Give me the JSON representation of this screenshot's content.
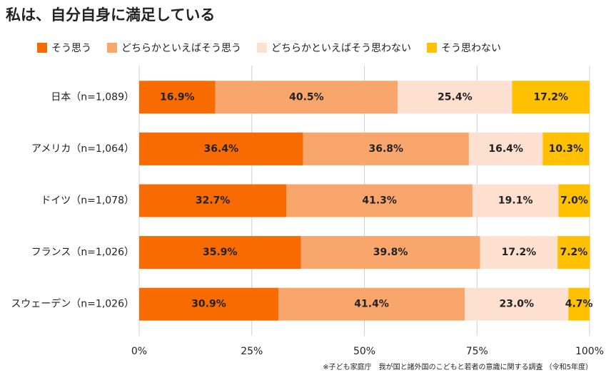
{
  "chart_data": {
    "type": "stacked-bar-horizontal",
    "title": "私は、自分自身に満足している",
    "categories": [
      "日本（n=1,089）",
      "アメリカ（n=1,064）",
      "ドイツ（n=1,078）",
      "フランス（n=1,026）",
      "スウェーデン（n=1,026）"
    ],
    "series": [
      {
        "name": "そう思う",
        "color": "#f76b00",
        "values": [
          16.9,
          36.4,
          32.7,
          35.9,
          30.9
        ],
        "value_labels": [
          "16.9%",
          "36.4%",
          "32.7%",
          "35.9%",
          "30.9%"
        ]
      },
      {
        "name": "どちらかといえばそう思う",
        "color": "#f9a66c",
        "values": [
          40.5,
          36.8,
          41.3,
          39.8,
          41.4
        ],
        "value_labels": [
          "40.5%",
          "36.8%",
          "41.3%",
          "39.8%",
          "41.4%"
        ]
      },
      {
        "name": "どちらかといえばそう思わない",
        "color": "#fde0d0",
        "values": [
          25.4,
          16.4,
          19.1,
          17.2,
          23.0
        ],
        "value_labels": [
          "25.4%",
          "16.4%",
          "19.1%",
          "17.2%",
          "23.0%"
        ]
      },
      {
        "name": "そう思わない",
        "color": "#ffc000",
        "values": [
          17.2,
          10.3,
          7.0,
          7.2,
          4.7
        ],
        "value_labels": [
          "17.2%",
          "10.3%",
          "7.0%",
          "7.2%",
          "4.7%"
        ]
      }
    ],
    "xlim": [
      0,
      100
    ],
    "xticks": [
      {
        "value": 0,
        "label": "0%"
      },
      {
        "value": 25,
        "label": "25%"
      },
      {
        "value": 50,
        "label": "50%"
      },
      {
        "value": 75,
        "label": "75%"
      },
      {
        "value": 100,
        "label": "100%"
      }
    ],
    "grid": true,
    "legend": "top",
    "footnote": "※子ども家庭庁　我が国と諸外国のこどもと若者の意識に関する調査 （令和5年度）"
  }
}
